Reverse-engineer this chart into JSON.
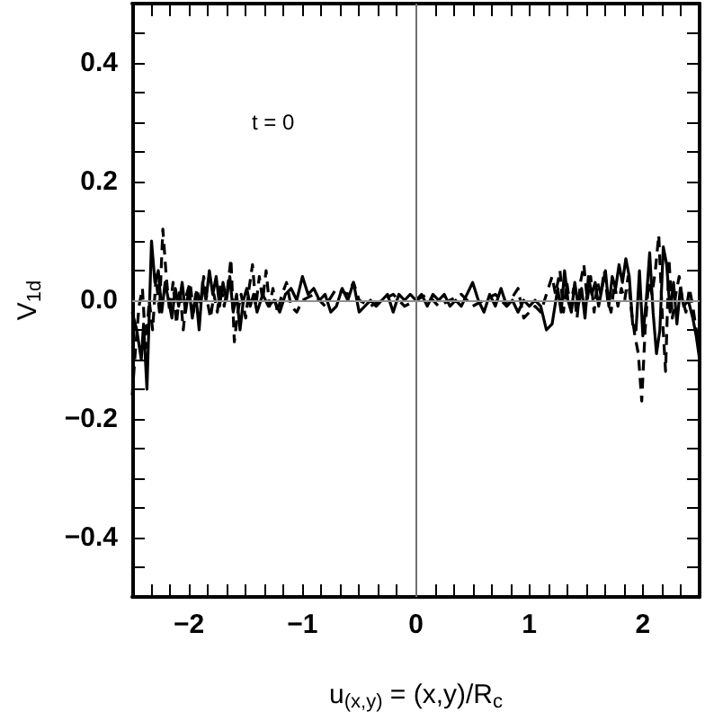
{
  "chart_data": {
    "type": "line",
    "xlabel": "u$_{(x,y)}$ = (x,y)/R$_{c}$",
    "ylabel": "V$_{1d}$",
    "annotations": [
      "t = 0"
    ],
    "xlim": [
      -2.5,
      2.5
    ],
    "ylim": [
      -0.5,
      0.5
    ],
    "xticks": [
      {
        "value": -2.333,
        "label": null
      },
      {
        "value": -2.167,
        "label": null
      },
      {
        "value": -2,
        "label": "−2"
      },
      {
        "value": -1.833,
        "label": null
      },
      {
        "value": -1.667,
        "label": null
      },
      {
        "value": -1.5,
        "label": null
      },
      {
        "value": -1.333,
        "label": null
      },
      {
        "value": -1.167,
        "label": null
      },
      {
        "value": -1,
        "label": "−1"
      },
      {
        "value": -0.833,
        "label": null
      },
      {
        "value": -0.667,
        "label": null
      },
      {
        "value": -0.5,
        "label": null
      },
      {
        "value": -0.333,
        "label": null
      },
      {
        "value": -0.167,
        "label": null
      },
      0,
      {
        "value": 0.167,
        "label": null
      },
      {
        "value": 0.333,
        "label": null
      },
      {
        "value": 0.5,
        "label": null
      },
      {
        "value": 0.667,
        "label": null
      },
      {
        "value": 0.833,
        "label": null
      },
      1,
      {
        "value": 1.167,
        "label": null
      },
      {
        "value": 1.333,
        "label": null
      },
      {
        "value": 1.5,
        "label": null
      },
      {
        "value": 1.667,
        "label": null
      },
      {
        "value": 1.833,
        "label": null
      },
      2,
      {
        "value": 2.167,
        "label": null
      },
      {
        "value": 2.333,
        "label": null
      }
    ],
    "yticks": [
      {
        "value": -0.45,
        "label": null
      },
      {
        "value": -0.4,
        "label": "−0.4"
      },
      {
        "value": -0.35,
        "label": null
      },
      {
        "value": -0.3,
        "label": null
      },
      {
        "value": -0.25,
        "label": null
      },
      {
        "value": -0.2,
        "label": "−0.2"
      },
      {
        "value": -0.15,
        "label": null
      },
      {
        "value": -0.1,
        "label": null
      },
      {
        "value": -0.05,
        "label": null
      },
      {
        "value": 0,
        "label": "0.0"
      },
      {
        "value": 0.05,
        "label": null
      },
      {
        "value": 0.1,
        "label": null
      },
      {
        "value": 0.15,
        "label": null
      },
      {
        "value": 0.2,
        "label": "0.2"
      },
      {
        "value": 0.25,
        "label": null
      },
      {
        "value": 0.3,
        "label": null
      },
      {
        "value": 0.35,
        "label": null
      },
      {
        "value": 0.4,
        "label": "0.4"
      },
      {
        "value": 0.45,
        "label": null
      }
    ],
    "grid": false,
    "marker": "none",
    "ref_lines": [
      {
        "axis": "x",
        "value": 0,
        "label": null,
        "color": "#707070"
      },
      {
        "axis": "y",
        "value": 0,
        "label": null,
        "color": "#909090"
      }
    ],
    "series": [
      {
        "color": "#000000",
        "line_style": "solid",
        "x": [
          -2.5,
          -2.46,
          -2.42,
          -2.4,
          -2.37,
          -2.33,
          -2.3,
          -2.27,
          -2.24,
          -2.21,
          -2.18,
          -2.15,
          -2.12,
          -2.09,
          -2.06,
          -2.03,
          -2,
          -1.97,
          -1.94,
          -1.91,
          -1.88,
          -1.85,
          -1.82,
          -1.79,
          -1.76,
          -1.73,
          -1.7,
          -1.67,
          -1.64,
          -1.61,
          -1.58,
          -1.55,
          -1.52,
          -1.49,
          -1.46,
          -1.43,
          -1.4,
          -1.35,
          -1.3,
          -1.25,
          -1.2,
          -1.15,
          -1.1,
          -1.05,
          -1,
          -0.95,
          -0.9,
          -0.85,
          -0.8,
          -0.75,
          -0.7,
          -0.65,
          -0.6,
          -0.55,
          -0.5,
          -0.45,
          -0.4,
          -0.35,
          -0.3,
          -0.25,
          -0.2,
          -0.15,
          -0.1,
          -0.05,
          0,
          0.05,
          0.1,
          0.15,
          0.2,
          0.25,
          0.3,
          0.35,
          0.4,
          0.45,
          0.5,
          0.55,
          0.6,
          0.65,
          0.7,
          0.75,
          0.8,
          0.85,
          0.9,
          0.95,
          1,
          1.05,
          1.1,
          1.15,
          1.2,
          1.25,
          1.28,
          1.31,
          1.34,
          1.37,
          1.4,
          1.43,
          1.46,
          1.49,
          1.52,
          1.55,
          1.58,
          1.61,
          1.64,
          1.67,
          1.7,
          1.73,
          1.76,
          1.79,
          1.82,
          1.85,
          1.88,
          1.91,
          1.94,
          1.97,
          2,
          2.03,
          2.06,
          2.09,
          2.12,
          2.15,
          2.18,
          2.21,
          2.24,
          2.27,
          2.3,
          2.33,
          2.36,
          2.4,
          2.44,
          2.47,
          2.5
        ],
        "values": [
          -0.02,
          -0.05,
          -0.1,
          -0.04,
          -0.15,
          0.1,
          0.03,
          0.05,
          -0.02,
          0.03,
          0,
          -0.03,
          0.02,
          -0.01,
          0.03,
          -0.02,
          0.02,
          -0.03,
          0.01,
          -0.05,
          0.03,
          0,
          0.05,
          0.01,
          0.04,
          -0.01,
          0.03,
          0,
          0.04,
          -0.02,
          0.01,
          -0.05,
          0,
          0.02,
          -0.01,
          0.01,
          -0.02,
          0.01,
          -0.01,
          0,
          -0.02,
          0.01,
          0.02,
          0,
          0.04,
          0.01,
          0.02,
          0,
          0.01,
          -0.02,
          -0.01,
          0.02,
          0,
          0.03,
          -0.02,
          -0.01,
          0,
          -0.01,
          0,
          0.01,
          -0.02,
          0.01,
          0,
          0.01,
          0,
          0.01,
          -0.01,
          0.01,
          0,
          0.01,
          -0.01,
          0,
          -0.01,
          0.01,
          0.03,
          0,
          -0.02,
          0.01,
          -0.01,
          0.02,
          -0.01,
          0,
          -0.02,
          0,
          -0.01,
          0,
          -0.01,
          -0.05,
          -0.04,
          0.02,
          -0.02,
          0.05,
          0,
          -0.02,
          0.03,
          -0.01,
          0.02,
          -0.03,
          0.04,
          0.01,
          0.03,
          -0.01,
          0.02,
          0.05,
          -0.01,
          0.04,
          0.02,
          0.06,
          0.03,
          0.07,
          0.04,
          -0.04,
          -0.05,
          0.05,
          -0.06,
          0,
          0.08,
          -0.02,
          -0.09,
          -0.05,
          0.09,
          0.06,
          -0.02,
          0.03,
          -0.04,
          0.02,
          -0.01,
          0,
          -0.03,
          -0.06,
          -0.1
        ]
      },
      {
        "color": "#000000",
        "line_style": "dashed",
        "x": [
          -2.5,
          -2.47,
          -2.44,
          -2.41,
          -2.38,
          -2.35,
          -2.32,
          -2.29,
          -2.26,
          -2.23,
          -2.2,
          -2.17,
          -2.14,
          -2.11,
          -2.08,
          -2.05,
          -2.02,
          -1.99,
          -1.96,
          -1.93,
          -1.9,
          -1.87,
          -1.84,
          -1.81,
          -1.78,
          -1.75,
          -1.72,
          -1.69,
          -1.66,
          -1.63,
          -1.6,
          -1.57,
          -1.54,
          -1.5,
          -1.47,
          -1.44,
          -1.41,
          -1.38,
          -1.35,
          -1.32,
          -1.29,
          -1.26,
          -1.22,
          -1.18,
          -1.14,
          -1.1,
          -1.05,
          -1,
          -0.9,
          -0.8,
          -0.7,
          -0.6,
          -0.55,
          -0.5,
          -0.4,
          -0.3,
          -0.2,
          -0.1,
          0,
          0.1,
          0.2,
          0.3,
          0.4,
          0.5,
          0.6,
          0.7,
          0.8,
          0.9,
          0.95,
          1,
          1.05,
          1.1,
          1.15,
          1.2,
          1.23,
          1.27,
          1.3,
          1.33,
          1.36,
          1.39,
          1.42,
          1.45,
          1.48,
          1.51,
          1.54,
          1.57,
          1.6,
          1.63,
          1.66,
          1.69,
          1.72,
          1.75,
          1.78,
          1.81,
          1.84,
          1.87,
          1.9,
          1.93,
          1.96,
          1.99,
          2.02,
          2.05,
          2.08,
          2.11,
          2.14,
          2.17,
          2.2,
          2.23,
          2.26,
          2.29,
          2.32,
          2.35,
          2.38,
          2.41,
          2.44,
          2.47,
          2.5
        ],
        "values": [
          -0.16,
          -0.08,
          -0.01,
          0.02,
          -0.08,
          0,
          -0.05,
          0.04,
          -0.02,
          0.12,
          0.04,
          -0.02,
          0.03,
          -0.04,
          0.02,
          -0.05,
          0.01,
          0.03,
          -0.02,
          0.02,
          -0.01,
          0.04,
          0,
          -0.03,
          0.01,
          -0.02,
          0.03,
          -0.01,
          0.02,
          0.07,
          -0.07,
          -0.02,
          0.01,
          -0.03,
          0.02,
          0.06,
          -0.01,
          0.04,
          0,
          0.05,
          -0.01,
          0.02,
          -0.02,
          0.01,
          0.03,
          -0.01,
          -0.02,
          0,
          0.01,
          -0.01,
          0.02,
          0.01,
          0.03,
          0,
          -0.01,
          0,
          0.01,
          -0.01,
          0,
          0.01,
          -0.01,
          0,
          0.01,
          -0.01,
          0,
          0.01,
          -0.01,
          0.02,
          -0.03,
          -0.02,
          -0.01,
          -0.02,
          0.01,
          0.04,
          0.01,
          0.05,
          -0.02,
          0.03,
          -0.01,
          0.02,
          -0.03,
          0.03,
          0.06,
          0,
          0.04,
          -0.02,
          0.03,
          0.01,
          0.05,
          0,
          -0.02,
          0.03,
          -0.01,
          0.02,
          0,
          0.04,
          -0.02,
          -0.06,
          -0.09,
          -0.17,
          -0.05,
          0.03,
          0.01,
          0.05,
          0.11,
          -0.02,
          -0.12,
          0.07,
          -0.03,
          0.01,
          0.04,
          0,
          -0.02,
          0.02,
          -0.01,
          -0.05,
          -0.08
        ]
      }
    ]
  }
}
